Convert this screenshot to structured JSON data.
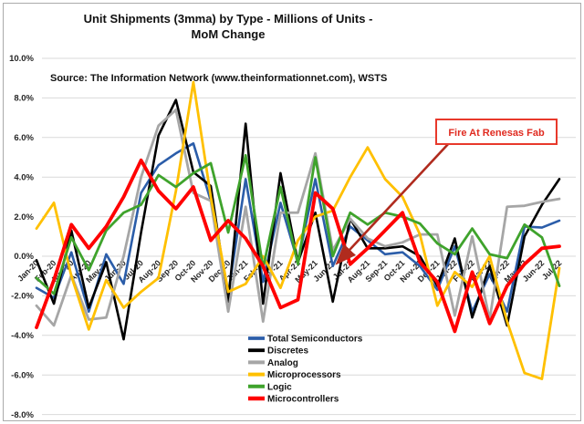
{
  "header": {
    "title_line1": "Unit Shipments (3mma) by Type - Millions of Units -",
    "title_line2": "MoM Change"
  },
  "source_note": "Source: The Information Network (www.theinformationnet.com), WSTS",
  "annotation": {
    "label": "Fire At Renesas Fab",
    "text_color": "#e02b20",
    "box_border_color": "#e8392b",
    "box_fill": "#ffffff",
    "arrow_color": "#b02b1e"
  },
  "colors": {
    "gridline": "#d9d9d9",
    "frame_border": "#ababab"
  },
  "chart_data": {
    "type": "line",
    "title": "Unit Shipments (3mma) by Type - Millions of Units - MoM Change",
    "xlabel": "",
    "ylabel": "",
    "ylim": [
      -8,
      10
    ],
    "yticks": [
      10,
      8,
      6,
      4,
      2,
      0,
      -2,
      -4,
      -6,
      -8
    ],
    "ytick_suffix": "%",
    "grid": "horizontal",
    "legend_position": "bottom-center",
    "categories": [
      "Jan-20",
      "Feb-20",
      "Mar-20",
      "Apr-20",
      "May-20",
      "Jun-20",
      "Jul-20",
      "Aug-20",
      "Sep-20",
      "Oct-20",
      "Nov-20",
      "Dec-20",
      "Jan-21",
      "Feb-21",
      "Mar-21",
      "Apr-21",
      "May-21",
      "Jun-21",
      "Jul-21",
      "Aug-21",
      "Sep-21",
      "Oct-21",
      "Nov-21",
      "Dec-21",
      "Jan-22",
      "Feb-22",
      "Mar-22",
      "Apr-22",
      "May-22",
      "Jun-22",
      "Jul-22"
    ],
    "series": [
      {
        "name": "Total Semiconductors",
        "color": "#2b5da9",
        "width": 2.6,
        "values": [
          -1.6,
          -2.1,
          0.2,
          -2.8,
          0.1,
          -1.4,
          3.2,
          4.6,
          5.2,
          5.7,
          2.8,
          -1.9,
          3.9,
          -1.3,
          2.7,
          -0.3,
          3.9,
          -0.5,
          1.5,
          0.8,
          0.1,
          0.2,
          -0.5,
          -1.7,
          0.5,
          -2.8,
          -0.9,
          -2.8,
          1.5,
          1.45,
          1.8
        ]
      },
      {
        "name": "Discretes",
        "color": "#000000",
        "width": 2.6,
        "values": [
          -0.2,
          -2.4,
          1.3,
          -2.6,
          -0.3,
          -4.2,
          1.2,
          6.1,
          7.9,
          4.25,
          3.55,
          -2.3,
          6.7,
          -2.4,
          4.2,
          -0.3,
          2.2,
          -2.3,
          1.9,
          0.4,
          0.4,
          0.5,
          0.0,
          -1.5,
          0.9,
          -3.1,
          -0.5,
          -3.5,
          1.0,
          2.6,
          3.9
        ]
      },
      {
        "name": "Analog",
        "color": "#a6a6a6",
        "width": 2.8,
        "values": [
          -2.5,
          -3.5,
          -0.95,
          -3.2,
          -3.1,
          0.0,
          4.0,
          6.6,
          7.4,
          3.2,
          2.8,
          -2.8,
          2.5,
          -3.3,
          2.2,
          2.2,
          5.2,
          0.3,
          1.9,
          0.9,
          0.5,
          0.7,
          1.1,
          1.1,
          -3.0,
          1.0,
          -3.2,
          2.5,
          2.55,
          2.75,
          2.9
        ]
      },
      {
        "name": "Microprocessors",
        "color": "#ffc000",
        "width": 2.8,
        "values": [
          1.4,
          2.7,
          -1.0,
          -3.7,
          -1.2,
          -2.6,
          -1.8,
          -1.1,
          3.3,
          8.8,
          3.0,
          -1.8,
          -1.4,
          0.0,
          -1.6,
          0.8,
          2.0,
          2.3,
          4.0,
          5.5,
          3.9,
          3.0,
          1.1,
          -2.5,
          -0.8,
          -1.55,
          0.0,
          -3.3,
          -5.9,
          -6.2,
          -0.6
        ]
      },
      {
        "name": "Logic",
        "color": "#3fa32c",
        "width": 2.8,
        "values": [
          -1.1,
          -1.9,
          0.95,
          -0.7,
          1.3,
          2.2,
          2.6,
          4.1,
          3.5,
          4.2,
          4.7,
          1.2,
          5.1,
          -0.6,
          3.5,
          -0.4,
          5.0,
          0.0,
          2.2,
          1.6,
          2.2,
          2.0,
          1.65,
          0.65,
          0.1,
          1.4,
          0.1,
          -0.1,
          1.6,
          0.95,
          -1.5
        ]
      },
      {
        "name": "Microcontrollers",
        "color": "#ff0000",
        "width": 3.8,
        "values": [
          -3.6,
          -1.2,
          1.6,
          0.4,
          1.5,
          3.0,
          4.85,
          3.3,
          2.4,
          3.5,
          0.8,
          1.8,
          0.9,
          -0.5,
          -2.6,
          -2.2,
          3.2,
          2.4,
          -0.4,
          0.4,
          1.3,
          2.2,
          -0.3,
          -1.3,
          -3.8,
          -0.8,
          -3.4,
          -1.5,
          -0.4,
          0.4,
          0.5
        ]
      }
    ]
  }
}
